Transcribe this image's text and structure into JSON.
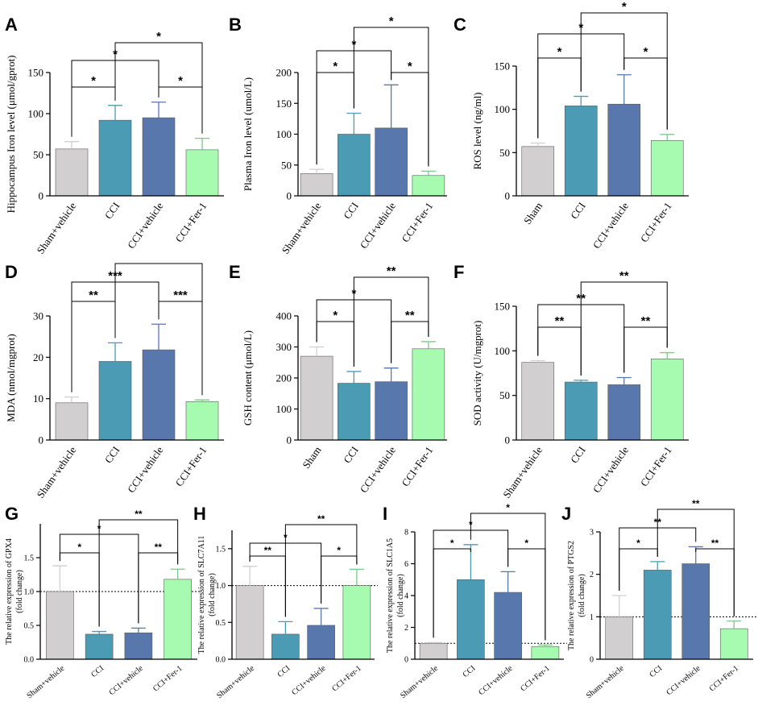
{
  "colors": {
    "gray": "#d1cfcf",
    "teal": "#4a9bb3",
    "blue": "#5877ad",
    "green": "#a6fbb1",
    "errorbar": "#888888"
  },
  "chart_data": [
    {
      "letter": "A",
      "type": "bar",
      "ylabel": "Hippocampus Iron level (μmol/gprot)",
      "ylim": [
        0,
        150
      ],
      "yticks": [
        0,
        50,
        100,
        150
      ],
      "categories": [
        "Sham+vehicle",
        "CCI",
        "CCI+vehicle",
        "CCI+Fer-1"
      ],
      "values": [
        57,
        92,
        95,
        56
      ],
      "errors": [
        9,
        18,
        19,
        14
      ],
      "refline": null,
      "brackets": [
        {
          "a": 0,
          "b": 1,
          "label": "*"
        },
        {
          "a": 2,
          "b": 3,
          "label": "*"
        },
        {
          "a": 0,
          "b": 2,
          "label": "*"
        },
        {
          "a": 1,
          "b": 3,
          "label": "*"
        }
      ]
    },
    {
      "letter": "B",
      "type": "bar",
      "ylabel": "Plasma Iron level (umol/L)",
      "ylim": [
        0,
        200
      ],
      "yticks": [
        0,
        50,
        100,
        150,
        200
      ],
      "categories": [
        "Sham+vehicle",
        "CCI",
        "CCI+vehicle",
        "CCI+Fer-1"
      ],
      "values": [
        36,
        100,
        110,
        33
      ],
      "errors": [
        7,
        34,
        70,
        7
      ],
      "refline": null,
      "brackets": [
        {
          "a": 0,
          "b": 1,
          "label": "*"
        },
        {
          "a": 2,
          "b": 3,
          "label": "*"
        },
        {
          "a": 0,
          "b": 2,
          "label": "*"
        },
        {
          "a": 1,
          "b": 3,
          "label": "*"
        }
      ]
    },
    {
      "letter": "C",
      "type": "bar",
      "ylabel": "ROS level (ng/ml)",
      "ylim": [
        0,
        150
      ],
      "yticks": [
        0,
        50,
        100,
        150
      ],
      "categories": [
        "Sham",
        "CCI",
        "CCI+vehicle",
        "CCI+Fer-1"
      ],
      "values": [
        57,
        104,
        106,
        64
      ],
      "errors": [
        4,
        11,
        34,
        7
      ],
      "refline": null,
      "brackets": [
        {
          "a": 0,
          "b": 1,
          "label": "*"
        },
        {
          "a": 2,
          "b": 3,
          "label": "*"
        },
        {
          "a": 0,
          "b": 2,
          "label": "*"
        },
        {
          "a": 1,
          "b": 3,
          "label": "*"
        }
      ]
    },
    {
      "letter": "D",
      "type": "bar",
      "ylabel": "MDA (nmol/mgprot)",
      "ylim": [
        0,
        30
      ],
      "yticks": [
        0,
        10,
        20,
        30
      ],
      "categories": [
        "Sham+vehicle",
        "CCI",
        "CCI+vehicle",
        "CCI+Fer-1"
      ],
      "values": [
        9,
        19,
        21.8,
        9.3
      ],
      "errors": [
        1.4,
        4.5,
        6.2,
        0.4
      ],
      "refline": null,
      "brackets": [
        {
          "a": 0,
          "b": 1,
          "label": "**"
        },
        {
          "a": 2,
          "b": 3,
          "label": "***"
        },
        {
          "a": 0,
          "b": 2,
          "label": "***"
        },
        {
          "a": 1,
          "b": 3,
          "label": ""
        }
      ]
    },
    {
      "letter": "E",
      "type": "bar",
      "ylabel": "GSH content (μmol/L)",
      "ylim": [
        0,
        400
      ],
      "yticks": [
        0,
        100,
        200,
        300,
        400
      ],
      "categories": [
        "Sham",
        "CCI",
        "CCI+vehicle",
        "CCI+Fer-1"
      ],
      "values": [
        270,
        183,
        188,
        294
      ],
      "errors": [
        30,
        38,
        44,
        23
      ],
      "refline": null,
      "brackets": [
        {
          "a": 0,
          "b": 1,
          "label": "*"
        },
        {
          "a": 2,
          "b": 3,
          "label": "**"
        },
        {
          "a": 0,
          "b": 2,
          "label": "*"
        },
        {
          "a": 1,
          "b": 3,
          "label": "**"
        }
      ]
    },
    {
      "letter": "F",
      "type": "bar",
      "ylabel": "SOD activity (U/mgprot)",
      "ylim": [
        0,
        150
      ],
      "yticks": [
        0,
        50,
        100,
        150
      ],
      "categories": [
        "Sham+vehicle",
        "CCI",
        "CCI+vehicle",
        "CCI+Fer-1"
      ],
      "values": [
        87,
        65,
        62,
        91
      ],
      "errors": [
        2,
        2,
        8,
        7
      ],
      "refline": null,
      "brackets": [
        {
          "a": 0,
          "b": 1,
          "label": "**"
        },
        {
          "a": 2,
          "b": 3,
          "label": "**"
        },
        {
          "a": 0,
          "b": 2,
          "label": "**"
        },
        {
          "a": 1,
          "b": 3,
          "label": "**"
        }
      ]
    },
    {
      "letter": "G",
      "type": "bar",
      "ylabel": "The relative expression of GPX4",
      "ylabel2": "(fold change)",
      "ylim": [
        0,
        2.0
      ],
      "yticks": [
        0.0,
        0.5,
        1.0,
        1.5
      ],
      "tickdec": 1,
      "categories": [
        "Sham+vehicle",
        "CCI",
        "CCI+vehicle",
        "CCI+Fer-1"
      ],
      "values": [
        1.0,
        0.37,
        0.39,
        1.18
      ],
      "errors": [
        0.38,
        0.04,
        0.07,
        0.15
      ],
      "refline": 1.0,
      "brackets": [
        {
          "a": 0,
          "b": 1,
          "label": "*"
        },
        {
          "a": 2,
          "b": 3,
          "label": "**"
        },
        {
          "a": 0,
          "b": 2,
          "label": "*"
        },
        {
          "a": 1,
          "b": 3,
          "label": "**"
        }
      ]
    },
    {
      "letter": "H",
      "type": "bar",
      "ylabel": "The relative expression of SLC7A11",
      "ylabel2": "(fold change)",
      "ylim": [
        0,
        1.75
      ],
      "yticks": [
        0.0,
        0.5,
        1.0,
        1.5
      ],
      "tickdec": 1,
      "categories": [
        "Sham+vehicle",
        "CCI",
        "CCI+vehicle",
        "CCI+Fer-1"
      ],
      "values": [
        1.0,
        0.34,
        0.46,
        1.0
      ],
      "errors": [
        0.26,
        0.17,
        0.23,
        0.22
      ],
      "refline": 1.0,
      "brackets": [
        {
          "a": 0,
          "b": 1,
          "label": "**"
        },
        {
          "a": 2,
          "b": 3,
          "label": "*"
        },
        {
          "a": 0,
          "b": 2,
          "label": "*"
        },
        {
          "a": 1,
          "b": 3,
          "label": "**"
        }
      ]
    },
    {
      "letter": "I",
      "type": "bar",
      "ylabel": "The relative expression of SLC1A5",
      "ylabel2": "(fold change)",
      "ylim": [
        0,
        8
      ],
      "yticks": [
        0,
        2,
        4,
        6,
        8
      ],
      "categories": [
        "Sham+vehicle",
        "CCI",
        "CCI+vehicle",
        "CCI+Fer-1"
      ],
      "values": [
        1.0,
        5.0,
        4.2,
        0.8
      ],
      "errors": [
        0.05,
        2.2,
        1.3,
        0.1
      ],
      "refline": 1.0,
      "brackets": [
        {
          "a": 0,
          "b": 1,
          "label": "*"
        },
        {
          "a": 2,
          "b": 3,
          "label": "*"
        },
        {
          "a": 0,
          "b": 2,
          "label": "*"
        },
        {
          "a": 1,
          "b": 3,
          "label": "*"
        }
      ]
    },
    {
      "letter": "J",
      "type": "bar",
      "ylabel": "The relative expression of PTGS2",
      "ylabel2": "(fold change)",
      "ylim": [
        0,
        3
      ],
      "yticks": [
        0,
        1,
        2,
        3
      ],
      "categories": [
        "Sham+vehicle",
        "CCI",
        "CCI+vehicle",
        "CCI+Fer-1"
      ],
      "values": [
        1.0,
        2.1,
        2.25,
        0.72
      ],
      "errors": [
        0.5,
        0.2,
        0.4,
        0.18
      ],
      "refline": 1.0,
      "brackets": [
        {
          "a": 0,
          "b": 1,
          "label": "*"
        },
        {
          "a": 2,
          "b": 3,
          "label": "**"
        },
        {
          "a": 0,
          "b": 2,
          "label": "**"
        },
        {
          "a": 1,
          "b": 3,
          "label": "**"
        }
      ]
    }
  ]
}
